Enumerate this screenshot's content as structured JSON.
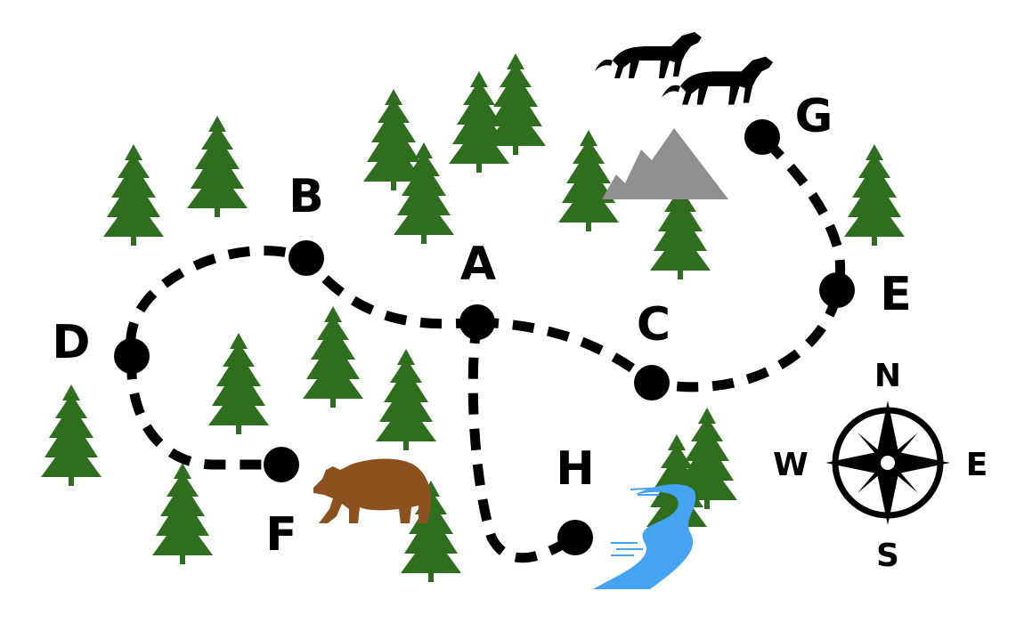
{
  "colors": {
    "background": "#ffffff",
    "tree": "#2f6e1e",
    "trunk": "#2f6e1e",
    "mountain": "#8f8f8f",
    "river": "#46a3f2",
    "bear": "#8b5220",
    "wolf": "#000000",
    "trail": "#000000"
  },
  "map": {
    "waypoints": [
      {
        "label": "A"
      },
      {
        "label": "B"
      },
      {
        "label": "C"
      },
      {
        "label": "D"
      },
      {
        "label": "E"
      },
      {
        "label": "F"
      },
      {
        "label": "G"
      },
      {
        "label": "H"
      }
    ],
    "trail_icon": "dashed-trail",
    "landmarks": [
      "mountain-icon",
      "river-icon",
      "bear-icon",
      "wolf-icon",
      "tree-icon"
    ]
  },
  "compass": {
    "icon": "compass-rose-icon",
    "n": "N",
    "e": "E",
    "s": "S",
    "w": "W"
  }
}
